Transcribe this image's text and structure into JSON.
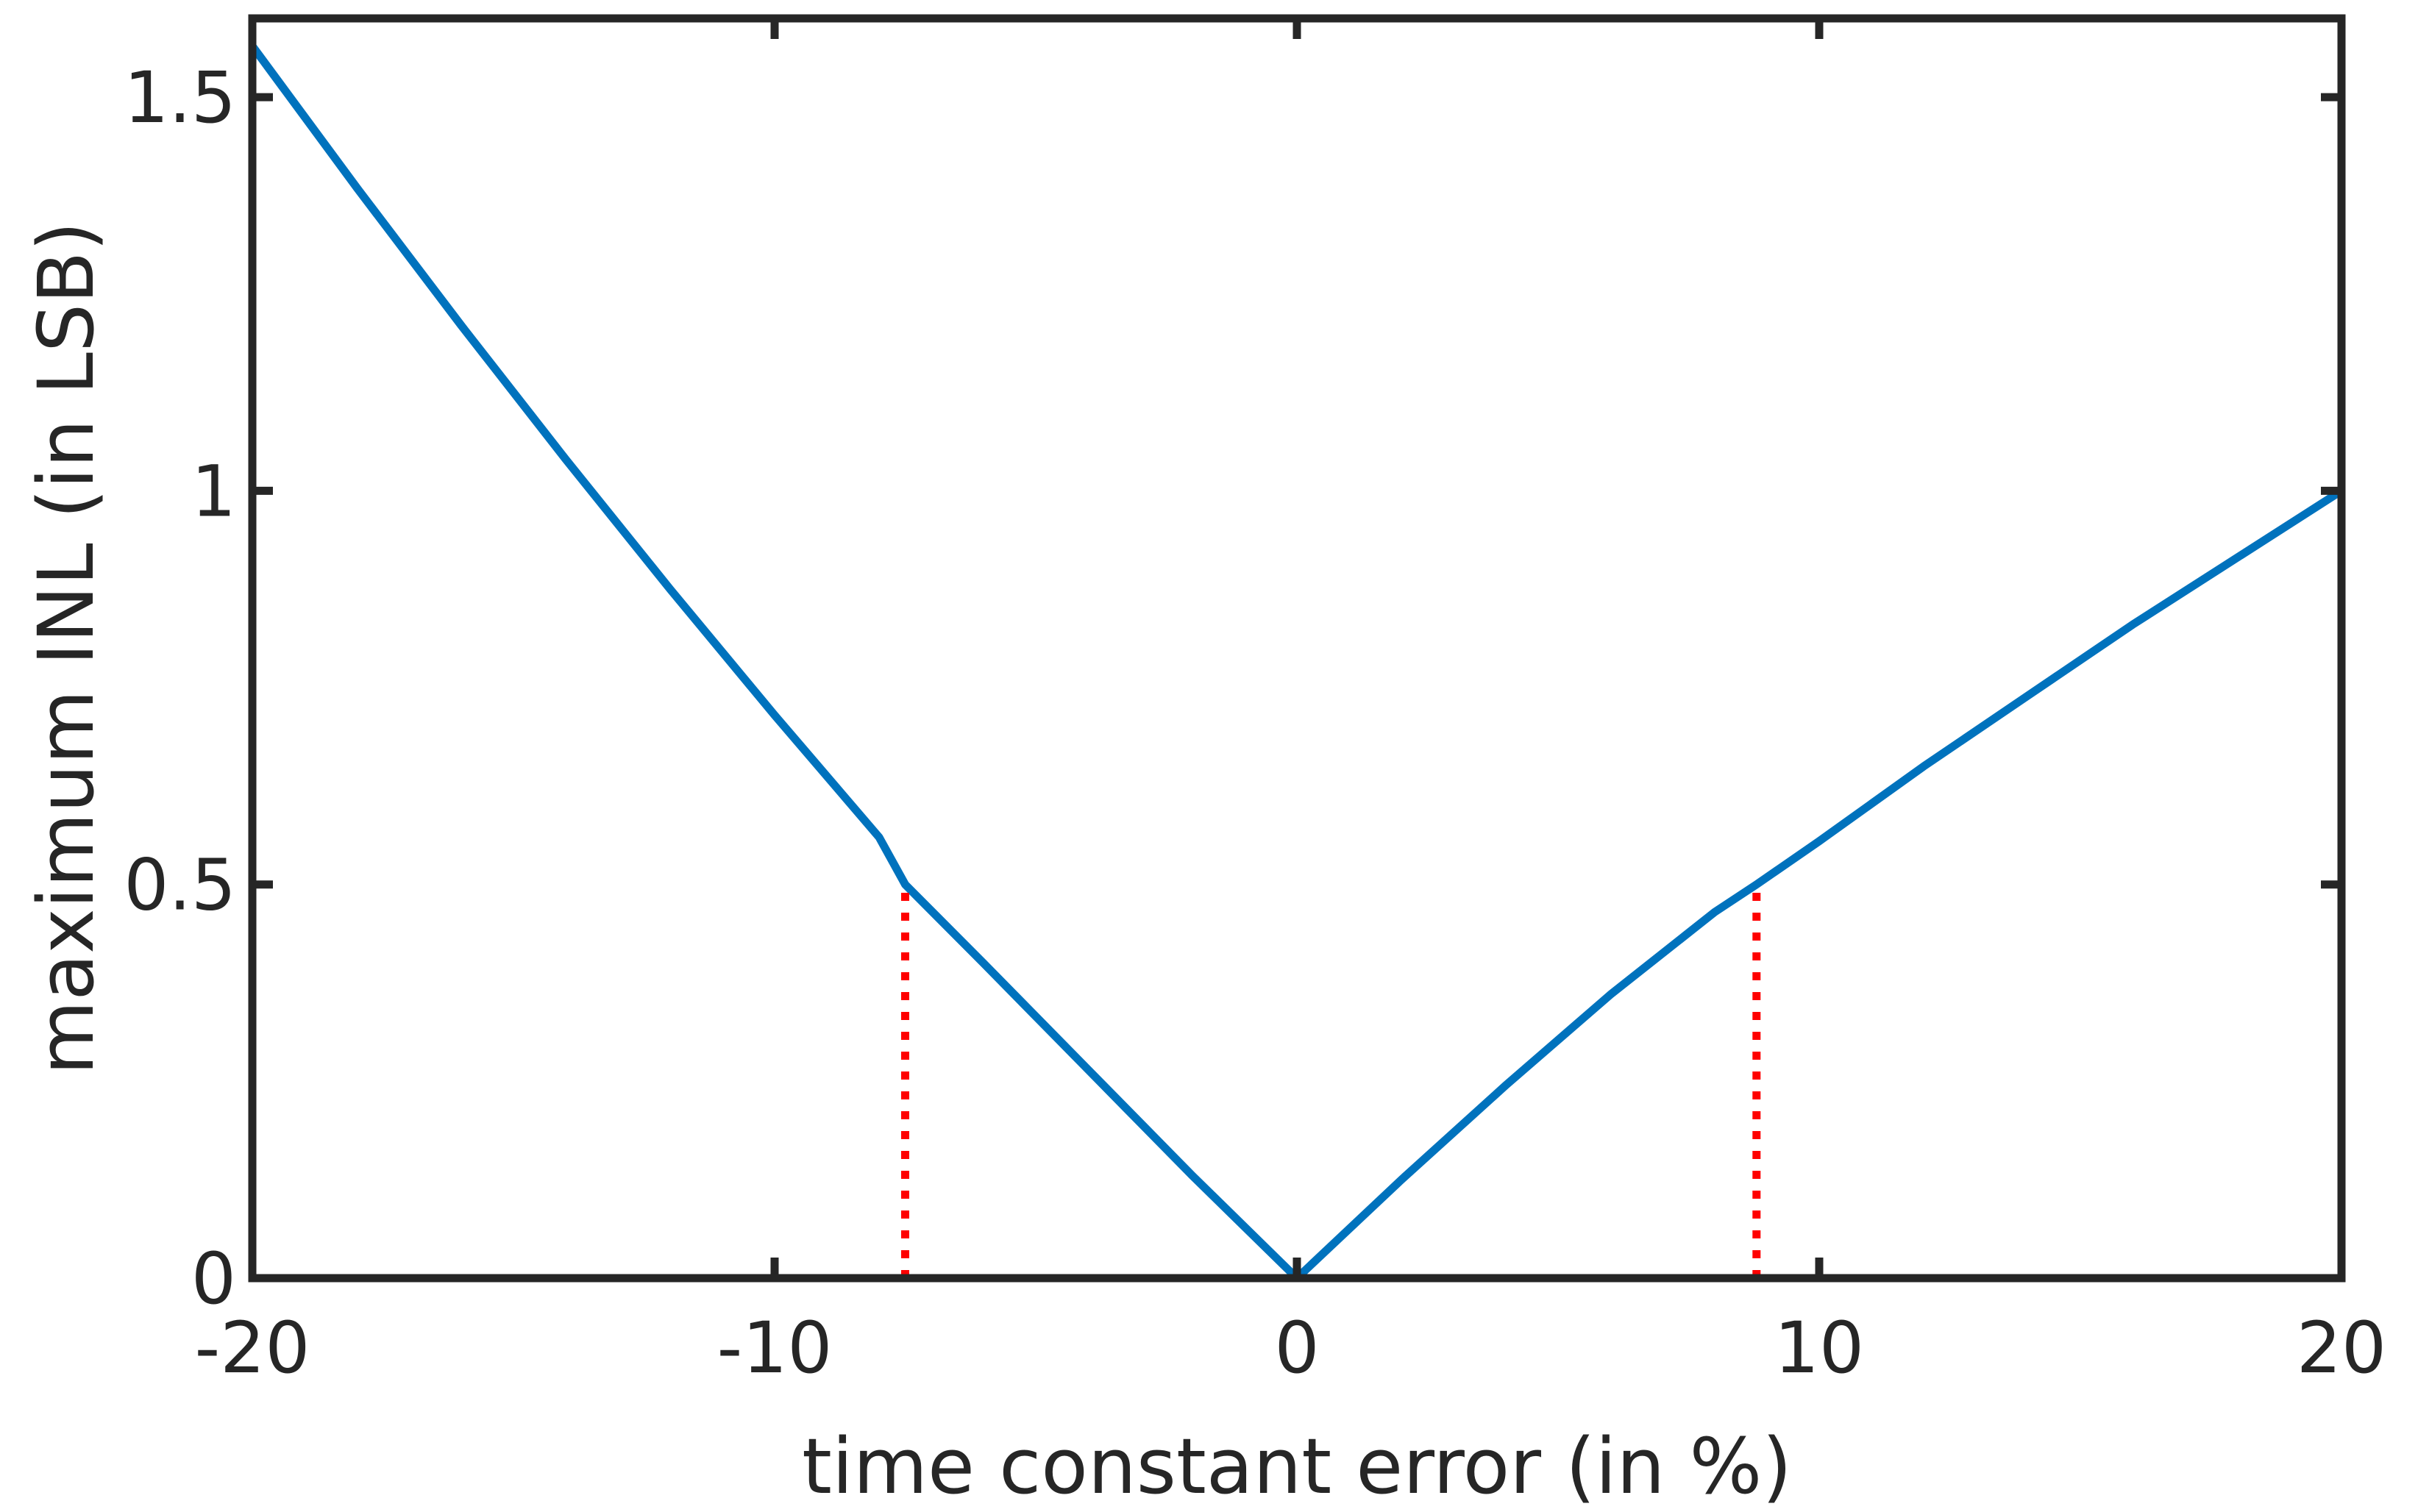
{
  "chart_data": {
    "type": "line",
    "xlabel": "time constant error (in %)",
    "ylabel": "maximum INL (in LSB)",
    "xlim": [
      -20,
      20
    ],
    "ylim": [
      0,
      1.6
    ],
    "xticks": [
      -20,
      -10,
      0,
      10,
      20
    ],
    "xtick_labels": [
      "-20",
      "-10",
      "0",
      "10",
      "20"
    ],
    "yticks": [
      0,
      0.5,
      1,
      1.5
    ],
    "ytick_labels": [
      "0",
      "0.5",
      "1",
      "1.5"
    ],
    "grid": false,
    "series": [
      {
        "color": "#0072BD",
        "x": [
          -20,
          -18,
          -16,
          -14,
          -12,
          -10,
          -8,
          -7.5,
          -6,
          -4,
          -2,
          0,
          2,
          4,
          6,
          8,
          8.8,
          10,
          12,
          14,
          16,
          18,
          20
        ],
        "y": [
          1.565,
          1.385,
          1.21,
          1.04,
          0.875,
          0.715,
          0.56,
          0.5,
          0.4,
          0.265,
          0.13,
          0.0,
          0.125,
          0.245,
          0.36,
          0.465,
          0.5,
          0.555,
          0.65,
          0.74,
          0.83,
          0.915,
          1.0
        ]
      }
    ],
    "annotations": [
      {
        "type": "vline",
        "style": "dotted",
        "color": "#FF0000",
        "x": -7.5,
        "y_from": 0,
        "y_to": 0.5
      },
      {
        "type": "vline",
        "style": "dotted",
        "color": "#FF0000",
        "x": 8.8,
        "y_from": 0,
        "y_to": 0.5
      }
    ]
  }
}
